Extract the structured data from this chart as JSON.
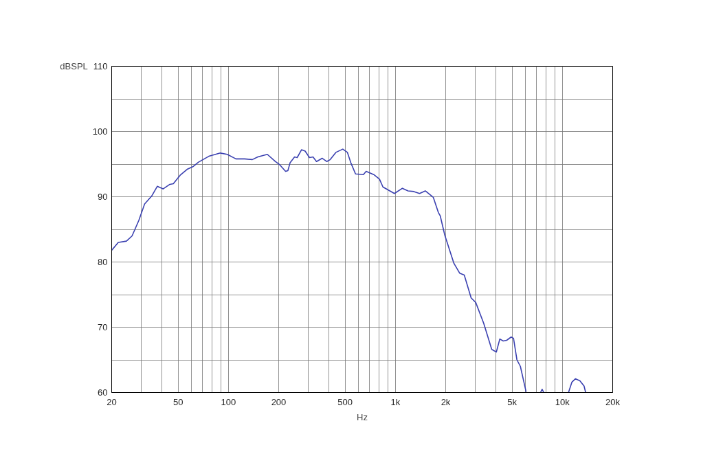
{
  "chart_data": {
    "type": "line",
    "ylabel": "dBSPL",
    "xlabel": "Hz",
    "log": "x",
    "grid": true,
    "marker": "none",
    "line_style": "solid",
    "xlim": [
      20,
      20000
    ],
    "ylim": [
      60,
      110
    ],
    "xticks": [
      20,
      {
        "value": 30,
        "label": null
      },
      {
        "value": 40,
        "label": null
      },
      50,
      {
        "value": 60,
        "label": null
      },
      {
        "value": 70,
        "label": null
      },
      {
        "value": 80,
        "label": null
      },
      {
        "value": 90,
        "label": null
      },
      100,
      200,
      {
        "value": 300,
        "label": null
      },
      {
        "value": 400,
        "label": null
      },
      500,
      {
        "value": 600,
        "label": null
      },
      {
        "value": 700,
        "label": null
      },
      {
        "value": 800,
        "label": null
      },
      {
        "value": 900,
        "label": null
      },
      {
        "value": 1000,
        "label": "1k"
      },
      {
        "value": 2000,
        "label": "2k"
      },
      {
        "value": 3000,
        "label": null
      },
      {
        "value": 4000,
        "label": null
      },
      {
        "value": 5000,
        "label": "5k"
      },
      {
        "value": 6000,
        "label": null
      },
      {
        "value": 7000,
        "label": null
      },
      {
        "value": 8000,
        "label": null
      },
      {
        "value": 9000,
        "label": null
      },
      {
        "value": 10000,
        "label": "10k"
      },
      {
        "value": 20000,
        "label": "20k"
      }
    ],
    "yticks": [
      60,
      {
        "value": 65,
        "label": null
      },
      70,
      {
        "value": 75,
        "label": null
      },
      80,
      {
        "value": 85,
        "label": null
      },
      90,
      {
        "value": 95,
        "label": null
      },
      100,
      {
        "value": 105,
        "label": null
      },
      110
    ],
    "series": [
      {
        "color": "#3a40b0",
        "x": [
          20,
          21.9,
          24.5,
          26.5,
          29.1,
          31.5,
          34.7,
          37.5,
          40.6,
          44.6,
          46.8,
          51.4,
          56.6,
          61.2,
          66.2,
          76.3,
          89.4,
          98.3,
          111,
          125,
          139,
          150,
          171,
          191,
          203,
          220,
          227,
          234,
          249,
          258,
          274,
          288,
          306,
          321,
          337,
          364,
          388,
          407,
          440,
          484,
          516,
          541,
          577,
          643,
          668,
          742,
          803,
          842,
          896,
          986,
          1101,
          1191,
          1290,
          1395,
          1510,
          1687,
          1807,
          1854,
          1976,
          2240,
          2424,
          2584,
          2840,
          3026,
          3378,
          3774,
          4022,
          4218,
          4422,
          4634,
          4934,
          5096,
          5342,
          5602,
          6060,
          6500,
          7396,
          7560,
          7732,
          8500,
          10876,
          11404,
          11956,
          12728,
          13472,
          13778
        ],
        "values": [
          81.8,
          83.0,
          83.2,
          84.0,
          86.4,
          88.9,
          90.1,
          91.6,
          91.2,
          91.9,
          92.0,
          93.3,
          94.2,
          94.6,
          95.3,
          96.2,
          96.7,
          96.5,
          95.8,
          95.8,
          95.7,
          96.1,
          96.5,
          95.4,
          94.9,
          93.9,
          94.0,
          95.2,
          96.1,
          96.0,
          97.2,
          97.0,
          96.0,
          96.1,
          95.4,
          95.9,
          95.4,
          95.7,
          96.8,
          97.3,
          96.8,
          95.2,
          93.5,
          93.4,
          93.9,
          93.4,
          92.7,
          91.5,
          91.1,
          90.5,
          91.3,
          90.9,
          90.8,
          90.5,
          90.9,
          89.9,
          87.6,
          87.1,
          84.1,
          79.8,
          78.3,
          78.0,
          74.5,
          73.8,
          70.6,
          66.6,
          66.2,
          68.2,
          67.9,
          68.0,
          68.5,
          68.3,
          65.0,
          64.0,
          60.1,
          null,
          60.0,
          60.5,
          60.0,
          null,
          60.0,
          61.6,
          62.1,
          61.8,
          61.0,
          60.0
        ]
      }
    ]
  }
}
